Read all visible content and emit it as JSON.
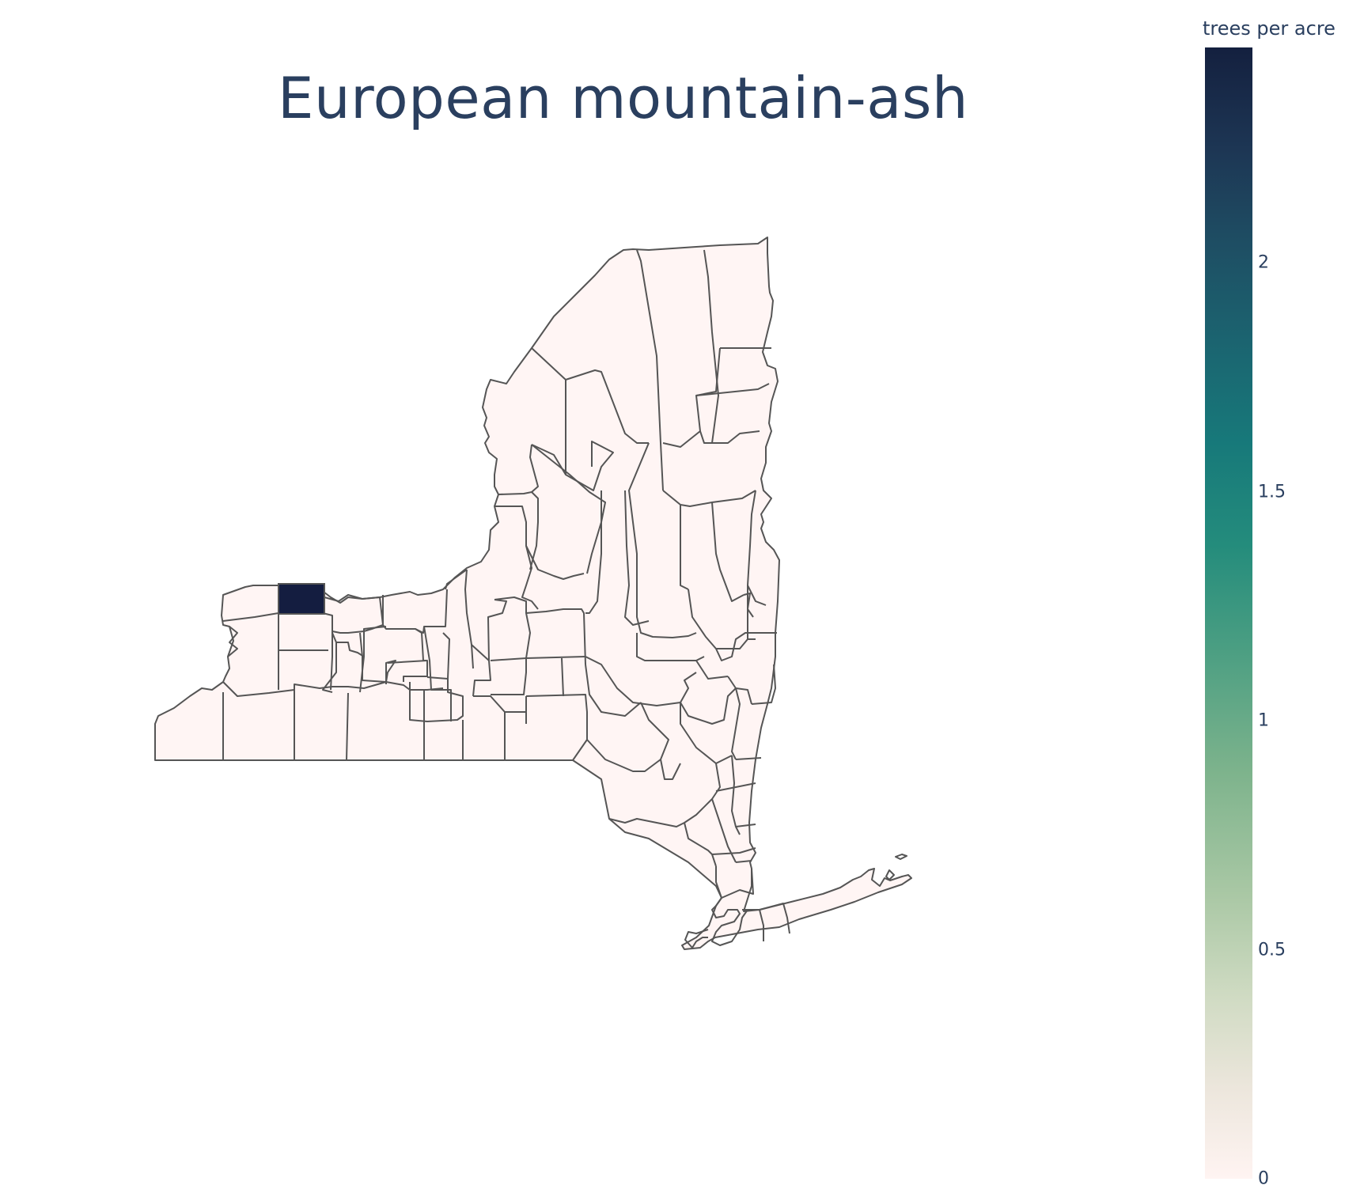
{
  "title": "European mountain-ash",
  "colorbar": {
    "title": "trees per acre",
    "min": 0,
    "max": 2.47,
    "ticks": [
      "0",
      "0.5",
      "1",
      "1.5",
      "2"
    ],
    "colorscale": [
      "#fff4f2",
      "#d0dbc3",
      "#7db38c",
      "#248c7c",
      "#1b6470",
      "#1d3654",
      "#14203f"
    ]
  },
  "chart_data": {
    "type": "choropleth",
    "title": "European mountain-ash",
    "region": "New York",
    "colorbar_title": "trees per acre",
    "range": [
      0,
      2.47
    ],
    "values": [
      {
        "county": "Orleans",
        "value": 2.47
      },
      {
        "county": "All other counties",
        "value": 0
      }
    ]
  }
}
